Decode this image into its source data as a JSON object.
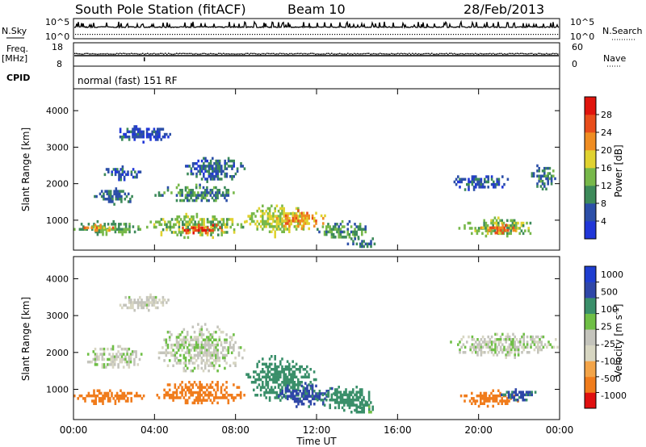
{
  "header": {
    "station": "South Pole Station (fitACF)",
    "beam": "Beam 10",
    "date": "28/Feb/2013"
  },
  "strip_labels": {
    "nsky": "N.Sky",
    "nsky_ticks": [
      "10^5",
      "10^0"
    ],
    "nsearch": "N.Search",
    "nsearch_ticks": [
      "10^5",
      "10^0"
    ],
    "freq_top": "Freq.",
    "freq_unit": "[MHz]",
    "freq_ticks": [
      "18",
      "8"
    ],
    "nave": "Nave",
    "nave_ticks": [
      "60",
      "0"
    ],
    "cpid": "CPID",
    "cpid_text": "normal (fast) 151 RF"
  },
  "colors": {
    "power": [
      "#2137d8",
      "#2c4fa8",
      "#3d8a5a",
      "#77b84a",
      "#e0d230",
      "#ef8d22",
      "#e84d1b",
      "#e0140d"
    ],
    "velocity": [
      "#e01010",
      "#f07c1c",
      "#f3a448",
      "#d7d6c2",
      "#c4c4bc",
      "#6fbf46",
      "#3a8f6a",
      "#2f47a8",
      "#1f3ed0"
    ]
  },
  "chart_data": [
    {
      "type": "heatmap",
      "quantity": "Power",
      "ylabel": "Slant Range [km]",
      "xlabel": "Time UT",
      "xlim": [
        "00:00",
        "00:00"
      ],
      "x_ticks": [
        "00:00",
        "04:00",
        "08:00",
        "12:00",
        "16:00",
        "20:00",
        "00:00"
      ],
      "ylim": [
        180,
        4600
      ],
      "y_ticks": [
        1000,
        2000,
        3000,
        4000
      ],
      "colorbar_label": "Power [dB]",
      "colorbar_ticks": [
        4,
        8,
        12,
        16,
        20,
        24,
        28
      ],
      "colorbar_range": [
        0,
        32
      ],
      "regions": [
        {
          "t": [
            0.0,
            3.5
          ],
          "r": [
            600,
            1000
          ],
          "v": 12
        },
        {
          "t": [
            0.5,
            2.3
          ],
          "r": [
            700,
            900
          ],
          "v": 22
        },
        {
          "t": [
            1.0,
            3.0
          ],
          "r": [
            1400,
            1900
          ],
          "v": 8
        },
        {
          "t": [
            1.5,
            3.5
          ],
          "r": [
            2100,
            2500
          ],
          "v": 6
        },
        {
          "t": [
            3.5,
            8.5
          ],
          "r": [
            500,
            1200
          ],
          "v": 14
        },
        {
          "t": [
            5.0,
            7.5
          ],
          "r": [
            650,
            900
          ],
          "v": 26
        },
        {
          "t": [
            4.0,
            8.0
          ],
          "r": [
            1400,
            2000
          ],
          "v": 10
        },
        {
          "t": [
            5.5,
            8.5
          ],
          "r": [
            2000,
            2800
          ],
          "v": 7
        },
        {
          "t": [
            2.0,
            5.0
          ],
          "r": [
            3100,
            3600
          ],
          "v": 5
        },
        {
          "t": [
            8.5,
            11.5
          ],
          "r": [
            500,
            1500
          ],
          "v": 16
        },
        {
          "t": [
            10.0,
            12.5
          ],
          "r": [
            700,
            1300
          ],
          "v": 22
        },
        {
          "t": [
            12.0,
            14.5
          ],
          "r": [
            400,
            1000
          ],
          "v": 11
        },
        {
          "t": [
            13.5,
            15.0
          ],
          "r": [
            200,
            600
          ],
          "v": 8
        },
        {
          "t": [
            19.0,
            23.0
          ],
          "r": [
            500,
            1100
          ],
          "v": 14
        },
        {
          "t": [
            20.0,
            22.0
          ],
          "r": [
            600,
            900
          ],
          "v": 23
        },
        {
          "t": [
            18.5,
            21.5
          ],
          "r": [
            1800,
            2300
          ],
          "v": 6
        },
        {
          "t": [
            22.5,
            24.0
          ],
          "r": [
            1800,
            2600
          ],
          "v": 9
        }
      ]
    },
    {
      "type": "heatmap",
      "quantity": "Velocity",
      "ylabel": "Slant Range [km]",
      "xlabel": "Time UT",
      "xlim": [
        "00:00",
        "00:00"
      ],
      "x_ticks": [
        "00:00",
        "04:00",
        "08:00",
        "12:00",
        "16:00",
        "20:00",
        "00:00"
      ],
      "ylim": [
        180,
        4600
      ],
      "y_ticks": [
        1000,
        2000,
        3000,
        4000
      ],
      "colorbar_label": "Velocity [m s^-1]",
      "colorbar_ticks": [
        "1000",
        "500",
        "100",
        "25",
        "-25",
        "-100",
        "-500",
        "-1000"
      ],
      "regions": [
        {
          "t": [
            0.0,
            3.5
          ],
          "r": [
            600,
            1000
          ],
          "v": -200
        },
        {
          "t": [
            0.5,
            3.5
          ],
          "r": [
            1500,
            2200
          ],
          "v": 10
        },
        {
          "t": [
            2.0,
            5.0
          ],
          "r": [
            3100,
            3600
          ],
          "v": 5
        },
        {
          "t": [
            4.0,
            8.5
          ],
          "r": [
            500,
            1300
          ],
          "v": -300
        },
        {
          "t": [
            4.0,
            8.5
          ],
          "r": [
            1400,
            2800
          ],
          "v": 12
        },
        {
          "t": [
            8.5,
            12.0
          ],
          "r": [
            600,
            2000
          ],
          "v": 300
        },
        {
          "t": [
            10.0,
            13.0
          ],
          "r": [
            500,
            1200
          ],
          "v": 700
        },
        {
          "t": [
            12.0,
            15.0
          ],
          "r": [
            400,
            1100
          ],
          "v": 250
        },
        {
          "t": [
            13.5,
            15.0
          ],
          "r": [
            300,
            700
          ],
          "v": 150
        },
        {
          "t": [
            19.0,
            22.0
          ],
          "r": [
            500,
            1000
          ],
          "v": -300
        },
        {
          "t": [
            21.0,
            23.0
          ],
          "r": [
            600,
            1100
          ],
          "v": 600
        },
        {
          "t": [
            18.5,
            24.0
          ],
          "r": [
            1800,
            2600
          ],
          "v": 15
        }
      ]
    }
  ]
}
